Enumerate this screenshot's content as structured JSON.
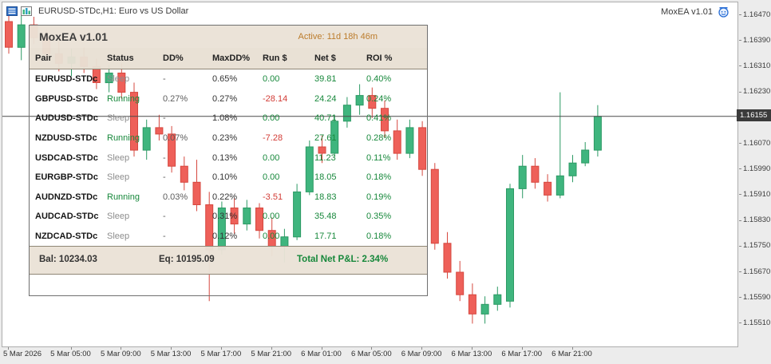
{
  "window": {
    "chart_title": "EURUSD-STDc,H1: Euro vs US Dollar",
    "ea_label": "MoxEA v1.01"
  },
  "panel": {
    "title": "MoxEA v1.01",
    "active": "Active: 11d 18h 46m",
    "columns": [
      "Pair",
      "Status",
      "DD%",
      "MaxDD%",
      "Run $",
      "Net $",
      "ROI %"
    ],
    "rows": [
      {
        "pair": "EURUSD-STDc",
        "status": "Sleep",
        "dd": "-",
        "maxdd": "0.65%",
        "run": "0.00",
        "net": "39.81",
        "roi": "0.40%"
      },
      {
        "pair": "GBPUSD-STDc",
        "status": "Running",
        "dd": "0.27%",
        "maxdd": "0.27%",
        "run": "-28.14",
        "net": "24.24",
        "roi": "0.24%"
      },
      {
        "pair": "AUDUSD-STDc",
        "status": "Sleep",
        "dd": "-",
        "maxdd": "1.08%",
        "run": "0.00",
        "net": "40.71",
        "roi": "0.41%"
      },
      {
        "pair": "NZDUSD-STDc",
        "status": "Running",
        "dd": "0.07%",
        "maxdd": "0.23%",
        "run": "-7.28",
        "net": "27.61",
        "roi": "0.28%"
      },
      {
        "pair": "USDCAD-STDc",
        "status": "Sleep",
        "dd": "-",
        "maxdd": "0.13%",
        "run": "0.00",
        "net": "11.23",
        "roi": "0.11%"
      },
      {
        "pair": "EURGBP-STDc",
        "status": "Sleep",
        "dd": "-",
        "maxdd": "0.10%",
        "run": "0.00",
        "net": "18.05",
        "roi": "0.18%"
      },
      {
        "pair": "AUDNZD-STDc",
        "status": "Running",
        "dd": "0.03%",
        "maxdd": "0.22%",
        "run": "-3.51",
        "net": "18.83",
        "roi": "0.19%"
      },
      {
        "pair": "AUDCAD-STDc",
        "status": "Sleep",
        "dd": "-",
        "maxdd": "0.31%",
        "run": "0.00",
        "net": "35.48",
        "roi": "0.35%"
      },
      {
        "pair": "NZDCAD-STDc",
        "status": "Sleep",
        "dd": "-",
        "maxdd": "0.12%",
        "run": "0.00",
        "net": "17.71",
        "roi": "0.18%"
      }
    ],
    "footer": {
      "bal": "Bal: 10234.03",
      "eq": "Eq: 10195.09",
      "total": "Total Net P&L: 2.34%"
    }
  },
  "chart_data": {
    "type": "candlestick",
    "symbol": "EURUSD-STDc",
    "timeframe": "H1",
    "current_price": "1.16155",
    "price_axis": {
      "max": 1.1647,
      "min": 1.1551,
      "step": 0.0008,
      "labels": [
        "1.16470",
        "1.16390",
        "1.16310",
        "1.16230",
        "1.16150",
        "1.16070",
        "1.15990",
        "1.15910",
        "1.15830",
        "1.15750",
        "1.15670",
        "1.15590",
        "1.15510"
      ]
    },
    "time_labels": [
      "5 Mar 2026",
      "5 Mar 05:00",
      "5 Mar 09:00",
      "5 Mar 13:00",
      "5 Mar 17:00",
      "5 Mar 21:00",
      "6 Mar 01:00",
      "6 Mar 05:00",
      "6 Mar 09:00",
      "6 Mar 13:00",
      "6 Mar 17:00",
      "6 Mar 21:00"
    ],
    "candles": [
      [
        1.1645,
        1.1648,
        1.1635,
        1.1637
      ],
      [
        1.1637,
        1.1647,
        1.1633,
        1.1644
      ],
      [
        1.1644,
        1.16465,
        1.1638,
        1.164
      ],
      [
        1.164,
        1.16425,
        1.1633,
        1.1635
      ],
      [
        1.1635,
        1.1639,
        1.16295,
        1.1632
      ],
      [
        1.1632,
        1.16365,
        1.1628,
        1.1634
      ],
      [
        1.1634,
        1.1637,
        1.1629,
        1.1631
      ],
      [
        1.1631,
        1.16335,
        1.1624,
        1.1626
      ],
      [
        1.1626,
        1.16315,
        1.1623,
        1.1629
      ],
      [
        1.1629,
        1.1632,
        1.1621,
        1.1623
      ],
      [
        1.1623,
        1.1626,
        1.1603,
        1.1605
      ],
      [
        1.1605,
        1.16145,
        1.1602,
        1.1612
      ],
      [
        1.1612,
        1.1616,
        1.1608,
        1.161
      ],
      [
        1.161,
        1.16125,
        1.1598,
        1.16
      ],
      [
        1.16,
        1.1603,
        1.15925,
        1.1595
      ],
      [
        1.1595,
        1.1602,
        1.1586,
        1.1588
      ],
      [
        1.1588,
        1.1592,
        1.1558,
        1.1574
      ],
      [
        1.1574,
        1.1589,
        1.15725,
        1.1587
      ],
      [
        1.1587,
        1.159,
        1.1579,
        1.1582
      ],
      [
        1.1582,
        1.15895,
        1.158,
        1.1587
      ],
      [
        1.1587,
        1.15885,
        1.15775,
        1.158
      ],
      [
        1.158,
        1.1584,
        1.1572,
        1.1575
      ],
      [
        1.1575,
        1.15805,
        1.157,
        1.1578
      ],
      [
        1.1578,
        1.15945,
        1.1577,
        1.1592
      ],
      [
        1.1592,
        1.1608,
        1.1591,
        1.1606
      ],
      [
        1.1606,
        1.16095,
        1.1601,
        1.1604
      ],
      [
        1.1604,
        1.1616,
        1.1603,
        1.1614
      ],
      [
        1.1614,
        1.16215,
        1.1612,
        1.1619
      ],
      [
        1.1619,
        1.16255,
        1.1616,
        1.1622
      ],
      [
        1.1622,
        1.16245,
        1.1615,
        1.1618
      ],
      [
        1.1618,
        1.16205,
        1.1609,
        1.1611
      ],
      [
        1.1611,
        1.16145,
        1.1602,
        1.1604
      ],
      [
        1.1604,
        1.16145,
        1.16025,
        1.1612
      ],
      [
        1.1612,
        1.1614,
        1.1597,
        1.1599
      ],
      [
        1.1599,
        1.1601,
        1.1574,
        1.1576
      ],
      [
        1.1576,
        1.15795,
        1.1565,
        1.1567
      ],
      [
        1.1567,
        1.15705,
        1.1558,
        1.156
      ],
      [
        1.156,
        1.15635,
        1.1551,
        1.1554
      ],
      [
        1.1554,
        1.15595,
        1.1551,
        1.1557
      ],
      [
        1.1557,
        1.15625,
        1.1555,
        1.156
      ],
      [
        1.1558,
        1.15945,
        1.1556,
        1.1593
      ],
      [
        1.1593,
        1.16035,
        1.159,
        1.16
      ],
      [
        1.16,
        1.16025,
        1.1593,
        1.1595
      ],
      [
        1.1595,
        1.15975,
        1.1589,
        1.1591
      ],
      [
        1.1591,
        1.1623,
        1.159,
        1.1597
      ],
      [
        1.1597,
        1.16035,
        1.1595,
        1.1601
      ],
      [
        1.1601,
        1.16075,
        1.16,
        1.1605
      ],
      [
        1.1605,
        1.1619,
        1.1603,
        1.16155
      ]
    ]
  },
  "colors": {
    "up_fill": "#3fb57e",
    "up_stroke": "#2c9a64",
    "down_fill": "#ee6059",
    "down_stroke": "#d6483f",
    "price_line": "#4a4a4a",
    "profit_green": "#17883b",
    "loss_red": "#d23b35",
    "active_orange": "#bc7c2c",
    "panel_beige": "#eae2d6"
  }
}
